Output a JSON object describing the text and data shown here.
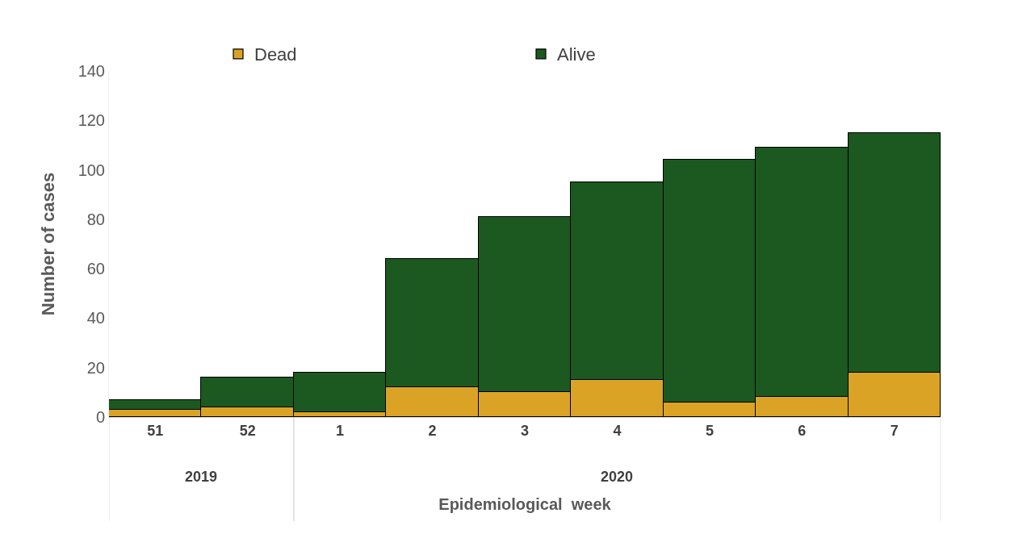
{
  "chart_data": {
    "type": "bar",
    "stacked": true,
    "xlabel": "Epidemiological  week",
    "ylabel": "Number of cases",
    "categories": [
      "51",
      "52",
      "1",
      "2",
      "3",
      "4",
      "5",
      "6",
      "7"
    ],
    "series": [
      {
        "name": "Dead",
        "color": "#dba326",
        "values": [
          3,
          4,
          2,
          12,
          10,
          15,
          6,
          8,
          18
        ]
      },
      {
        "name": "Alive",
        "color": "#1c5920",
        "values": [
          4,
          12,
          16,
          52,
          71,
          80,
          98,
          101,
          97
        ]
      }
    ],
    "ylim": [
      0,
      140
    ],
    "yticks": [
      0,
      20,
      40,
      60,
      80,
      100,
      120,
      140
    ],
    "grid": false,
    "legend": "top",
    "annotations": [
      "2019",
      "2020"
    ]
  }
}
